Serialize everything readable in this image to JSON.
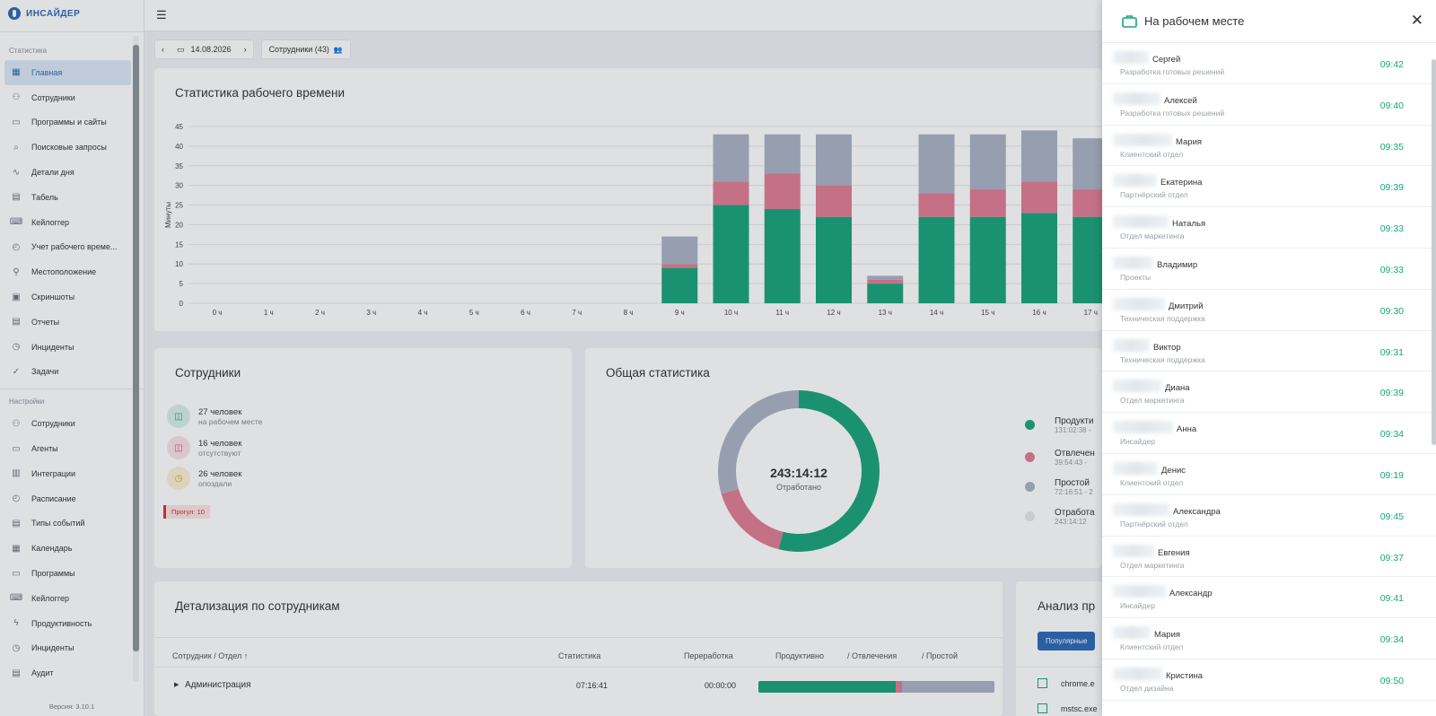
{
  "app": {
    "logo": "ИНСАЙДЕР",
    "version": "Версия: 3.10.1"
  },
  "sidebar": {
    "section_stats": "Статистика",
    "section_settings": "Настройки",
    "stats_items": [
      {
        "label": "Главная",
        "icon": "dashboard-icon",
        "active": true
      },
      {
        "label": "Сотрудники",
        "icon": "users-icon"
      },
      {
        "label": "Программы и сайты",
        "icon": "window-icon"
      },
      {
        "label": "Поисковые запросы",
        "icon": "search-icon"
      },
      {
        "label": "Детали дня",
        "icon": "trend-icon"
      },
      {
        "label": "Табель",
        "icon": "document-icon"
      },
      {
        "label": "Кейлоггер",
        "icon": "keyboard-icon"
      },
      {
        "label": "Учет рабочего време...",
        "icon": "timesheet-icon"
      },
      {
        "label": "Местоположение",
        "icon": "location-icon"
      },
      {
        "label": "Скриншоты",
        "icon": "screen-icon"
      },
      {
        "label": "Отчеты",
        "icon": "report-icon"
      },
      {
        "label": "Инциденты",
        "icon": "alert-icon"
      },
      {
        "label": "Задачи",
        "icon": "check-circle-icon"
      }
    ],
    "settings_items": [
      {
        "label": "Сотрудники",
        "icon": "users-settings-icon"
      },
      {
        "label": "Агенты",
        "icon": "monitor-icon"
      },
      {
        "label": "Интеграции",
        "icon": "integrations-icon"
      },
      {
        "label": "Расписание",
        "icon": "schedule-icon"
      },
      {
        "label": "Типы событий",
        "icon": "event-types-icon"
      },
      {
        "label": "Календарь",
        "icon": "calendar-icon"
      },
      {
        "label": "Программы",
        "icon": "programs-icon"
      },
      {
        "label": "Кейлоггер",
        "icon": "keyboard-icon"
      },
      {
        "label": "Продуктивность",
        "icon": "lightning-icon"
      },
      {
        "label": "Инциденты",
        "icon": "alert-icon"
      },
      {
        "label": "Аудит",
        "icon": "audit-icon"
      }
    ]
  },
  "toolbar": {
    "date": "14.08.2026",
    "employees_button": "Сотрудники (43)"
  },
  "stats_card": {
    "title": "Статистика рабочего времени"
  },
  "chart_data": {
    "type": "bar",
    "stacked": true,
    "title": "Статистика рабочего времени",
    "ylabel": "Минуты",
    "xlabel": "",
    "ylim": [
      0,
      45
    ],
    "yticks": [
      0,
      5,
      10,
      15,
      20,
      25,
      30,
      35,
      40,
      45
    ],
    "categories": [
      "0 ч",
      "1 ч",
      "2 ч",
      "3 ч",
      "4 ч",
      "5 ч",
      "6 ч",
      "7 ч",
      "8 ч",
      "9 ч",
      "10 ч",
      "11 ч",
      "12 ч",
      "13 ч",
      "14 ч",
      "15 ч",
      "16 ч",
      "17 ч"
    ],
    "series": [
      {
        "color": "#1aa57a",
        "values": [
          0,
          0,
          0,
          0,
          0,
          0,
          0,
          0,
          0,
          9,
          25,
          24,
          22,
          5,
          22,
          22,
          23,
          22
        ]
      },
      {
        "color": "#e07d94",
        "values": [
          0,
          0,
          0,
          0,
          0,
          0,
          0,
          0,
          0,
          1,
          6,
          9,
          8,
          1,
          6,
          7,
          8,
          7
        ]
      },
      {
        "color": "#aab3c5",
        "values": [
          0,
          0,
          0,
          0,
          0,
          0,
          0,
          0,
          0,
          7,
          12,
          10,
          13,
          1,
          15,
          14,
          13,
          13
        ]
      }
    ],
    "grid": true
  },
  "employees_card": {
    "title": "Сотрудники",
    "rows": [
      {
        "count": "27 человек",
        "label": "на рабочем месте",
        "icon": "briefcase-icon",
        "color": "#1aa57a",
        "bg": "#d7f0e6"
      },
      {
        "count": "16 человек",
        "label": "отсутствуют",
        "icon": "briefcase-off-icon",
        "color": "#d9546f",
        "bg": "#fbe1e6"
      },
      {
        "count": "26 человек",
        "label": "опоздали",
        "icon": "briefcase-clock-icon",
        "color": "#e0a02a",
        "bg": "#fcefd4"
      }
    ],
    "absent_badge": "Прогул: 10"
  },
  "overall_card": {
    "title": "Общая статистика",
    "center_value": "243:14:12",
    "center_label": "Отработано",
    "donut": [
      {
        "color": "#1aa57a",
        "fraction": 0.54
      },
      {
        "color": "#e07d94",
        "fraction": 0.164
      },
      {
        "color": "#aab3c5",
        "fraction": 0.296
      }
    ],
    "legend": [
      {
        "label": "Продукти",
        "value": "131:02:38 -",
        "color": "#1aa57a"
      },
      {
        "label": "Отвлечен",
        "value": "39:54:43 -",
        "color": "#e07d94"
      },
      {
        "label": "Простой",
        "value": "72:16:51 - 2",
        "color": "#aab3c5"
      },
      {
        "label": "Отработа",
        "value": "243:14:12",
        "color": "#e6e8eb"
      }
    ]
  },
  "detail_card": {
    "title": "Детализация по сотрудникам",
    "headers": {
      "employee": "Сотрудник / Отдел",
      "stats": "Статистика",
      "overtime": "Переработка",
      "productive": "Продуктивно",
      "distractions": "/ Отвлечения",
      "idle": "/ Простой"
    },
    "row": {
      "name": "Администрация",
      "stats": "07:16:41",
      "overtime": "00:00:00",
      "bar": [
        0.58,
        0.03,
        0.39
      ]
    }
  },
  "analysis_card": {
    "title": "Анализ пр",
    "button": "Популярные",
    "items": [
      "chrome.e",
      "mstsc.exe"
    ]
  },
  "panel": {
    "title": "На рабочем месте",
    "rows": [
      {
        "name": "Сергей",
        "dept": "Разработка готовых решений",
        "time": "09:42"
      },
      {
        "name": "Алексей",
        "dept": "Разработка готовых решений",
        "time": "09:40"
      },
      {
        "name": "Мария",
        "dept": "Клиентский отдел",
        "time": "09:35"
      },
      {
        "name": "Екатерина",
        "dept": "Партнёрский отдел",
        "time": "09:39"
      },
      {
        "name": "Наталья",
        "dept": "Отдел маркетинга",
        "time": "09:33"
      },
      {
        "name": "Владимир",
        "dept": "Проекты",
        "time": "09:33"
      },
      {
        "name": "Дмитрий",
        "dept": "Техническая поддержка",
        "time": "09:30"
      },
      {
        "name": "Виктор",
        "dept": "Техническая поддержка",
        "time": "09:31"
      },
      {
        "name": "Диана",
        "dept": "Отдел маркетинга",
        "time": "09:39"
      },
      {
        "name": "Анна",
        "dept": "Инсайдер",
        "time": "09:34"
      },
      {
        "name": "Денис",
        "dept": "Клиентский отдел",
        "time": "09:19"
      },
      {
        "name": "Александра",
        "dept": "Партнёрский отдел",
        "time": "09:45"
      },
      {
        "name": "Евгения",
        "dept": "Отдел маркетинга",
        "time": "09:37"
      },
      {
        "name": "Александр",
        "dept": "Инсайдер",
        "time": "09:41"
      },
      {
        "name": "Мария",
        "dept": "Клиентский отдел",
        "time": "09:34"
      },
      {
        "name": "Кристина",
        "dept": "Отдел дизайна",
        "time": "09:50"
      }
    ]
  }
}
